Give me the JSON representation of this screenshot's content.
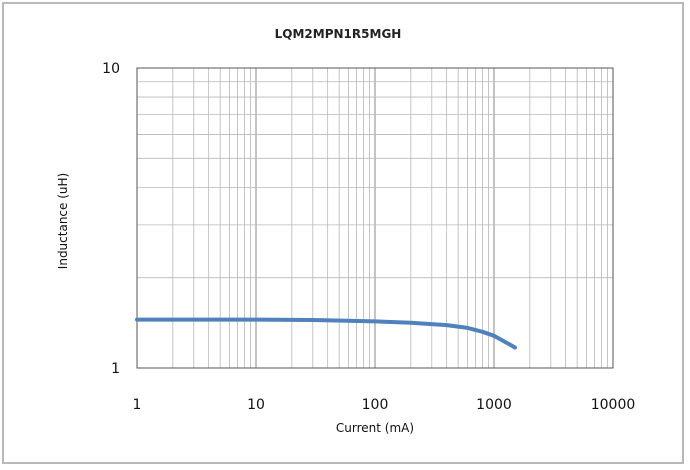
{
  "chart_data": {
    "type": "line",
    "title": "LQM2MPN1R5MGH",
    "xlabel": "Current (mA)",
    "ylabel": "Inductance (uH)",
    "xscale": "log",
    "yscale": "log",
    "xlim": [
      1,
      10000
    ],
    "ylim": [
      1,
      10
    ],
    "xticks": [
      "1",
      "10",
      "100",
      "1000",
      "10000"
    ],
    "yticks": [
      "1",
      "10"
    ],
    "grid": true,
    "legend": "none",
    "series": [
      {
        "color": "#4f81bd",
        "points": [
          {
            "x": 1,
            "y": 1.45
          },
          {
            "x": 10,
            "y": 1.45
          },
          {
            "x": 30,
            "y": 1.445
          },
          {
            "x": 100,
            "y": 1.43
          },
          {
            "x": 200,
            "y": 1.415
          },
          {
            "x": 400,
            "y": 1.39
          },
          {
            "x": 600,
            "y": 1.36
          },
          {
            "x": 800,
            "y": 1.32
          },
          {
            "x": 1000,
            "y": 1.28
          },
          {
            "x": 1200,
            "y": 1.23
          },
          {
            "x": 1500,
            "y": 1.17
          }
        ]
      }
    ]
  }
}
